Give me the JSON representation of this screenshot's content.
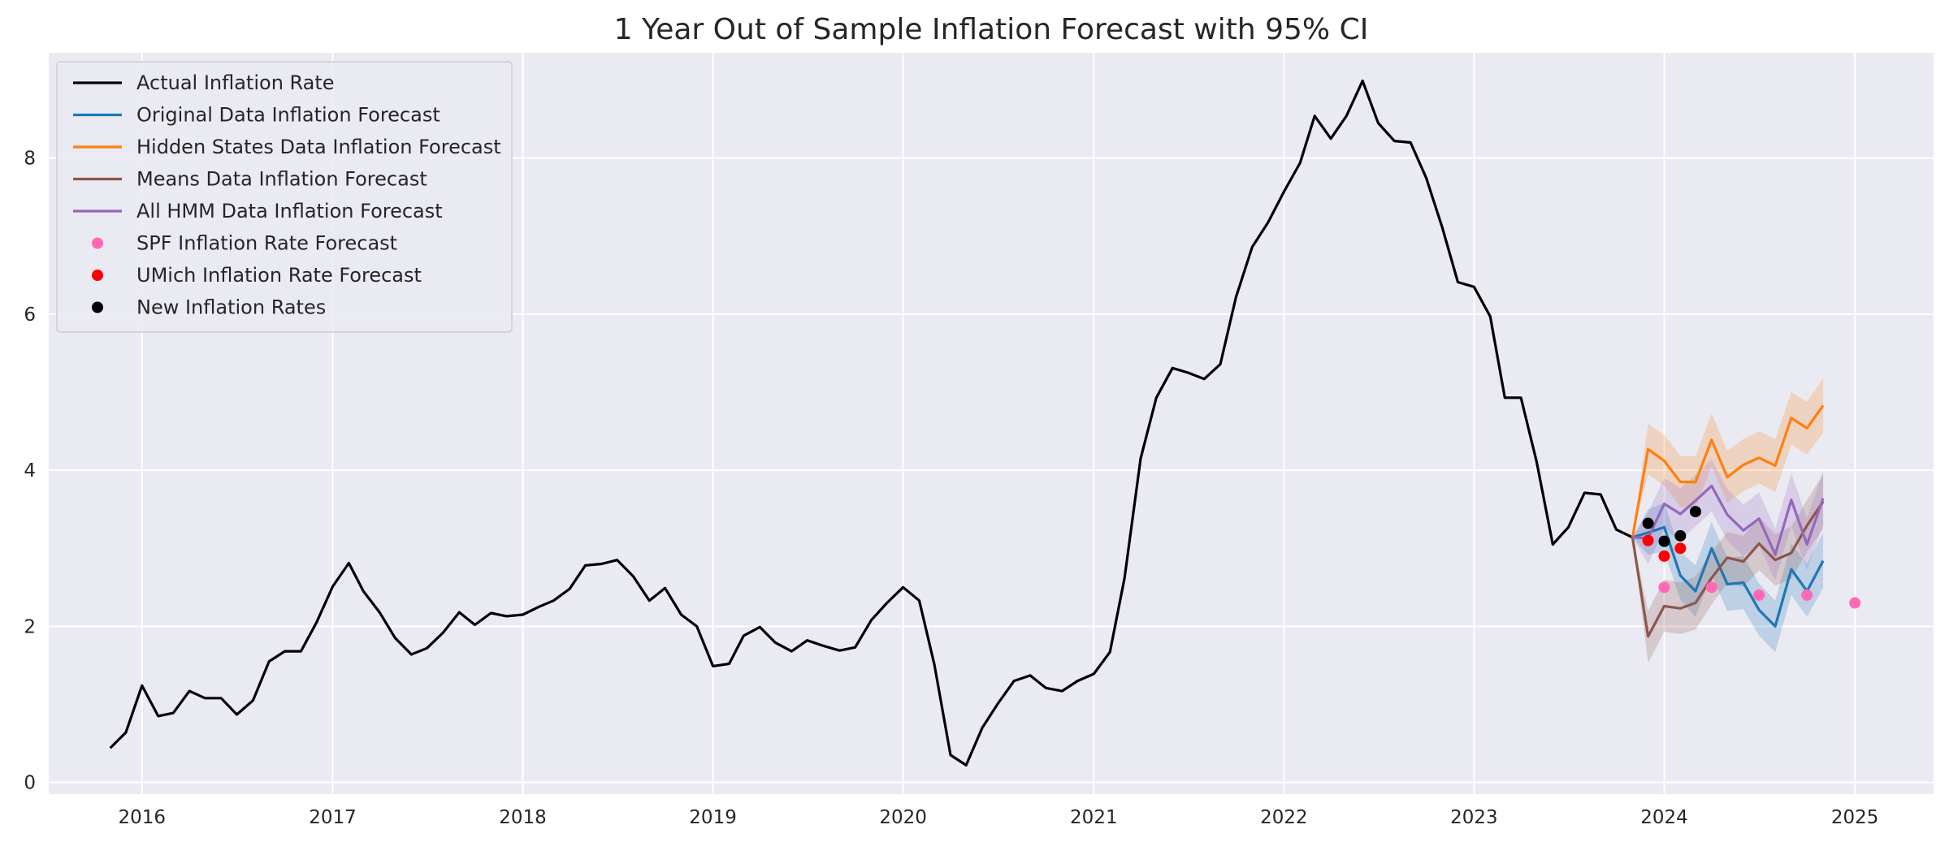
{
  "chart_data": {
    "type": "line",
    "title": "1 Year Out of Sample Inflation Forecast with 95% CI",
    "xlabel": "",
    "ylabel": "",
    "xlim": [
      "2015-07-06",
      "2025-06-01"
    ],
    "ylim": [
      -0.15,
      9.35
    ],
    "x_ticks": [
      "2016",
      "2017",
      "2018",
      "2019",
      "2020",
      "2021",
      "2022",
      "2023",
      "2024",
      "2025"
    ],
    "y_ticks": [
      "0",
      "2",
      "4",
      "6",
      "8"
    ],
    "grid": true,
    "legend_position": "top-left",
    "background": "#eaeaf2",
    "series": [
      {
        "name": "Actual Inflation Rate",
        "style": "line",
        "color": "#000000",
        "x": [
          "2015-11-01",
          "2015-12-01",
          "2016-01-01",
          "2016-02-01",
          "2016-03-01",
          "2016-04-01",
          "2016-05-01",
          "2016-06-01",
          "2016-07-01",
          "2016-08-01",
          "2016-09-01",
          "2016-10-01",
          "2016-11-01",
          "2016-12-01",
          "2017-01-01",
          "2017-02-01",
          "2017-03-01",
          "2017-04-01",
          "2017-05-01",
          "2017-06-01",
          "2017-07-01",
          "2017-08-01",
          "2017-09-01",
          "2017-10-01",
          "2017-11-01",
          "2017-12-01",
          "2018-01-01",
          "2018-02-01",
          "2018-03-01",
          "2018-04-01",
          "2018-05-01",
          "2018-06-01",
          "2018-07-01",
          "2018-08-01",
          "2018-09-01",
          "2018-10-01",
          "2018-11-01",
          "2018-12-01",
          "2019-01-01",
          "2019-02-01",
          "2019-03-01",
          "2019-04-01",
          "2019-05-01",
          "2019-06-01",
          "2019-07-01",
          "2019-08-01",
          "2019-09-01",
          "2019-10-01",
          "2019-11-01",
          "2019-12-01",
          "2020-01-01",
          "2020-02-01",
          "2020-03-01",
          "2020-04-01",
          "2020-05-01",
          "2020-06-01",
          "2020-07-01",
          "2020-08-01",
          "2020-09-01",
          "2020-10-01",
          "2020-11-01",
          "2020-12-01",
          "2021-01-01",
          "2021-02-01",
          "2021-03-01",
          "2021-04-01",
          "2021-05-01",
          "2021-06-01",
          "2021-07-01",
          "2021-08-01",
          "2021-09-01",
          "2021-10-01",
          "2021-11-01",
          "2021-12-01",
          "2022-01-01",
          "2022-02-01",
          "2022-03-01",
          "2022-04-01",
          "2022-05-01",
          "2022-06-01",
          "2022-07-01",
          "2022-08-01",
          "2022-09-01",
          "2022-10-01",
          "2022-11-01",
          "2022-12-01",
          "2023-01-01",
          "2023-02-01",
          "2023-03-01",
          "2023-04-01",
          "2023-05-01",
          "2023-06-01",
          "2023-07-01",
          "2023-08-01",
          "2023-09-01",
          "2023-10-01",
          "2023-11-01"
        ],
        "values": [
          0.44,
          0.64,
          1.24,
          0.85,
          0.89,
          1.17,
          1.08,
          1.08,
          0.87,
          1.05,
          1.55,
          1.68,
          1.68,
          2.05,
          2.51,
          2.81,
          2.45,
          2.18,
          1.85,
          1.64,
          1.72,
          1.92,
          2.18,
          2.02,
          2.17,
          2.13,
          2.15,
          2.25,
          2.33,
          2.48,
          2.78,
          2.8,
          2.85,
          2.64,
          2.33,
          2.49,
          2.15,
          2.0,
          1.49,
          1.52,
          1.88,
          1.99,
          1.79,
          1.68,
          1.82,
          1.75,
          1.69,
          1.73,
          2.08,
          2.3,
          2.5,
          2.33,
          1.51,
          0.35,
          0.22,
          0.7,
          1.01,
          1.3,
          1.37,
          1.21,
          1.17,
          1.3,
          1.39,
          1.67,
          2.62,
          4.15,
          4.93,
          5.31,
          5.25,
          5.17,
          5.36,
          6.22,
          6.86,
          7.17,
          7.57,
          7.94,
          8.54,
          8.25,
          8.54,
          8.99,
          8.45,
          8.22,
          8.2,
          7.75,
          7.11,
          6.41,
          6.35,
          5.97,
          4.93,
          4.93,
          4.11,
          3.05,
          3.27,
          3.71,
          3.69,
          3.24,
          3.14
        ]
      },
      {
        "name": "Original Data Inflation Forecast",
        "style": "line",
        "color": "#1f77b4",
        "x": [
          "2023-11-01",
          "2023-12-01",
          "2024-01-01",
          "2024-02-01",
          "2024-03-01",
          "2024-04-01",
          "2024-05-01",
          "2024-06-01",
          "2024-07-01",
          "2024-08-01",
          "2024-09-01",
          "2024-10-01",
          "2024-11-01"
        ],
        "values": [
          3.14,
          3.2,
          3.27,
          2.65,
          2.45,
          3.0,
          2.54,
          2.56,
          2.21,
          2.0,
          2.73,
          2.45,
          2.84
        ],
        "ci_lower": [
          3.14,
          2.92,
          2.96,
          2.34,
          2.12,
          2.66,
          2.2,
          2.22,
          1.88,
          1.67,
          2.4,
          2.12,
          2.49
        ],
        "ci_upper": [
          3.14,
          3.5,
          3.58,
          2.96,
          2.78,
          3.34,
          2.88,
          2.9,
          2.55,
          2.33,
          3.06,
          2.8,
          3.2
        ]
      },
      {
        "name": "Hidden States Data Inflation Forecast",
        "style": "line",
        "color": "#ff7f0e",
        "x": [
          "2023-11-01",
          "2023-12-01",
          "2024-01-01",
          "2024-02-01",
          "2024-03-01",
          "2024-04-01",
          "2024-05-01",
          "2024-06-01",
          "2024-07-01",
          "2024-08-01",
          "2024-09-01",
          "2024-10-01",
          "2024-11-01"
        ],
        "values": [
          3.14,
          4.27,
          4.12,
          3.85,
          3.85,
          4.39,
          3.91,
          4.07,
          4.16,
          4.06,
          4.67,
          4.54,
          4.83
        ],
        "ci_lower": [
          3.14,
          3.95,
          3.8,
          3.53,
          3.52,
          4.05,
          3.58,
          3.73,
          3.83,
          3.72,
          4.33,
          4.2,
          4.48
        ],
        "ci_upper": [
          3.14,
          4.6,
          4.45,
          4.18,
          4.18,
          4.73,
          4.25,
          4.4,
          4.5,
          4.4,
          5.0,
          4.88,
          5.18
        ]
      },
      {
        "name": "Means Data Inflation Forecast",
        "style": "line",
        "color": "#8c564b",
        "x": [
          "2023-11-01",
          "2023-12-01",
          "2024-01-01",
          "2024-02-01",
          "2024-03-01",
          "2024-04-01",
          "2024-05-01",
          "2024-06-01",
          "2024-07-01",
          "2024-08-01",
          "2024-09-01",
          "2024-10-01",
          "2024-11-01"
        ],
        "values": [
          3.14,
          1.87,
          2.26,
          2.23,
          2.3,
          2.62,
          2.88,
          2.83,
          3.06,
          2.85,
          2.94,
          3.29,
          3.6
        ],
        "ci_lower": [
          3.14,
          1.53,
          1.93,
          1.9,
          1.96,
          2.28,
          2.55,
          2.5,
          2.72,
          2.52,
          2.61,
          2.95,
          3.25
        ],
        "ci_upper": [
          3.14,
          2.2,
          2.6,
          2.56,
          2.64,
          2.95,
          3.21,
          3.16,
          3.4,
          3.18,
          3.28,
          3.62,
          3.95
        ]
      },
      {
        "name": "All HMM Data Inflation Forecast",
        "style": "line",
        "color": "#9467bd",
        "x": [
          "2023-11-01",
          "2023-12-01",
          "2024-01-01",
          "2024-02-01",
          "2024-03-01",
          "2024-04-01",
          "2024-05-01",
          "2024-06-01",
          "2024-07-01",
          "2024-08-01",
          "2024-09-01",
          "2024-10-01",
          "2024-11-01"
        ],
        "values": [
          3.14,
          3.13,
          3.57,
          3.44,
          3.61,
          3.8,
          3.43,
          3.23,
          3.38,
          2.92,
          3.62,
          3.05,
          3.64
        ],
        "ci_lower": [
          3.14,
          2.8,
          3.24,
          3.1,
          3.28,
          3.47,
          3.1,
          2.9,
          3.04,
          2.59,
          3.29,
          2.72,
          3.3
        ],
        "ci_upper": [
          3.14,
          3.46,
          3.9,
          3.77,
          3.94,
          4.14,
          3.76,
          3.56,
          3.72,
          3.25,
          3.96,
          3.38,
          3.99
        ]
      },
      {
        "name": "SPF Inflation Rate Forecast",
        "style": "marker",
        "color": "#ff69b4",
        "x": [
          "2024-01-01",
          "2024-04-01",
          "2024-07-01",
          "2024-10-01",
          "2025-01-01"
        ],
        "values": [
          2.5,
          2.5,
          2.4,
          2.4,
          2.3
        ]
      },
      {
        "name": "UMich Inflation Rate Forecast",
        "style": "marker",
        "color": "#ff0000",
        "x": [
          "2023-12-01",
          "2024-01-01",
          "2024-02-01"
        ],
        "values": [
          3.1,
          2.9,
          3.0
        ]
      },
      {
        "name": "New Inflation Rates",
        "style": "marker",
        "color": "#000000",
        "x": [
          "2023-12-01",
          "2024-01-01",
          "2024-02-01",
          "2024-03-01"
        ],
        "values": [
          3.32,
          3.09,
          3.16,
          3.47
        ]
      }
    ]
  }
}
